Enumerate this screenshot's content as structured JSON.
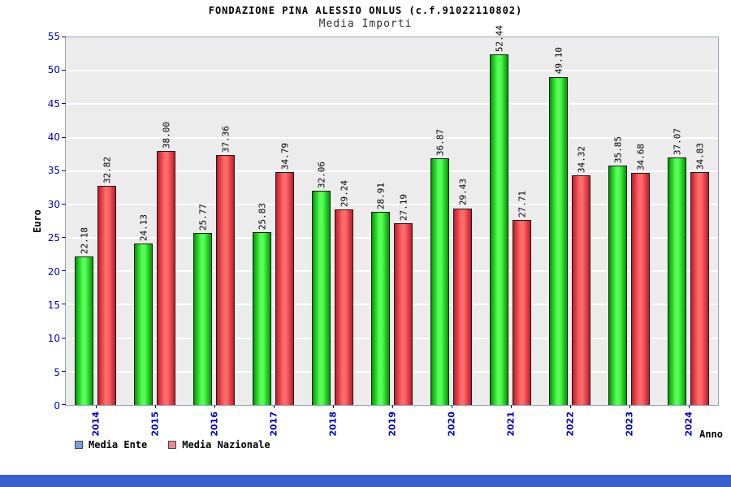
{
  "chart_data": {
    "type": "bar",
    "title": "FONDAZIONE PINA ALESSIO ONLUS (c.f.91022110802)",
    "subtitle": "Media Importi",
    "xlabel": "Anno",
    "ylabel": "Euro",
    "ylim": [
      0,
      55
    ],
    "yticks": [
      0,
      5,
      10,
      15,
      20,
      25,
      30,
      35,
      40,
      45,
      50,
      55
    ],
    "grid": true,
    "legend_position": "bottom-left",
    "categories": [
      "2014",
      "2015",
      "2016",
      "2017",
      "2018",
      "2019",
      "2020",
      "2021",
      "2022",
      "2023",
      "2024"
    ],
    "series": [
      {
        "name": "Media Ente",
        "color_edge": "#009900",
        "color_center": "#55ff55",
        "values": [
          22.18,
          24.13,
          25.77,
          25.83,
          32.06,
          28.91,
          36.87,
          52.44,
          49.1,
          35.85,
          37.07
        ],
        "labels": [
          "22.18",
          "24.13",
          "25.77",
          "25.83",
          "32.06",
          "28.91",
          "36.87",
          "52.44",
          "49.10",
          "35.85",
          "37.07"
        ]
      },
      {
        "name": "Media Nazionale",
        "color_edge": "#c21a2a",
        "color_center": "#ff6a6a",
        "values": [
          32.82,
          38.0,
          37.36,
          34.79,
          29.24,
          27.19,
          29.43,
          27.71,
          34.32,
          34.68,
          34.83
        ],
        "labels": [
          "32.82",
          "38.00",
          "37.36",
          "34.79",
          "29.24",
          "27.19",
          "29.43",
          "27.71",
          "34.32",
          "34.68",
          "34.83"
        ]
      }
    ]
  },
  "legend": {
    "items": [
      {
        "label": "Media Ente",
        "color": "#7b9fd4"
      },
      {
        "label": "Media Nazionale",
        "color": "#ef8792"
      }
    ]
  },
  "colors": {
    "axis_text": "#0000bb",
    "plot_background": "#ececec",
    "gridline": "#ffffff",
    "plot_border": "#9aa4b8",
    "footer_strip": "#3b5fd0"
  }
}
